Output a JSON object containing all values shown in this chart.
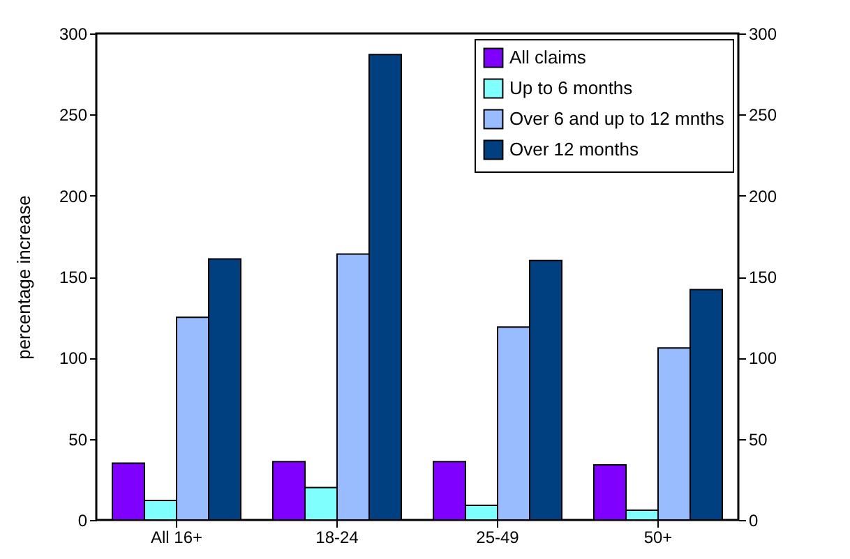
{
  "chart_data": {
    "type": "bar",
    "ylabel": "percentage increase",
    "categories": [
      "All 16+",
      "18-24",
      "25-49",
      "50+"
    ],
    "series": [
      {
        "name": "All claims",
        "color": "#8000ff",
        "values": [
          35,
          36,
          36,
          34
        ]
      },
      {
        "name": "Up to 6 months",
        "color": "#80ffff",
        "values": [
          12,
          20,
          9,
          6
        ]
      },
      {
        "name": "Over 6 and up to 12 mnths",
        "color": "#99bbff",
        "values": [
          125,
          164,
          119,
          106
        ]
      },
      {
        "name": "Over 12 months",
        "color": "#003f80",
        "values": [
          161,
          287,
          160,
          142
        ]
      }
    ],
    "ylim": [
      0,
      300
    ],
    "yticks": [
      0,
      50,
      100,
      150,
      200,
      250,
      300
    ],
    "y2lim": [
      0,
      300
    ],
    "y2ticks": [
      0,
      50,
      100,
      150,
      200,
      250,
      300
    ],
    "grid": false,
    "legend": "top right"
  }
}
